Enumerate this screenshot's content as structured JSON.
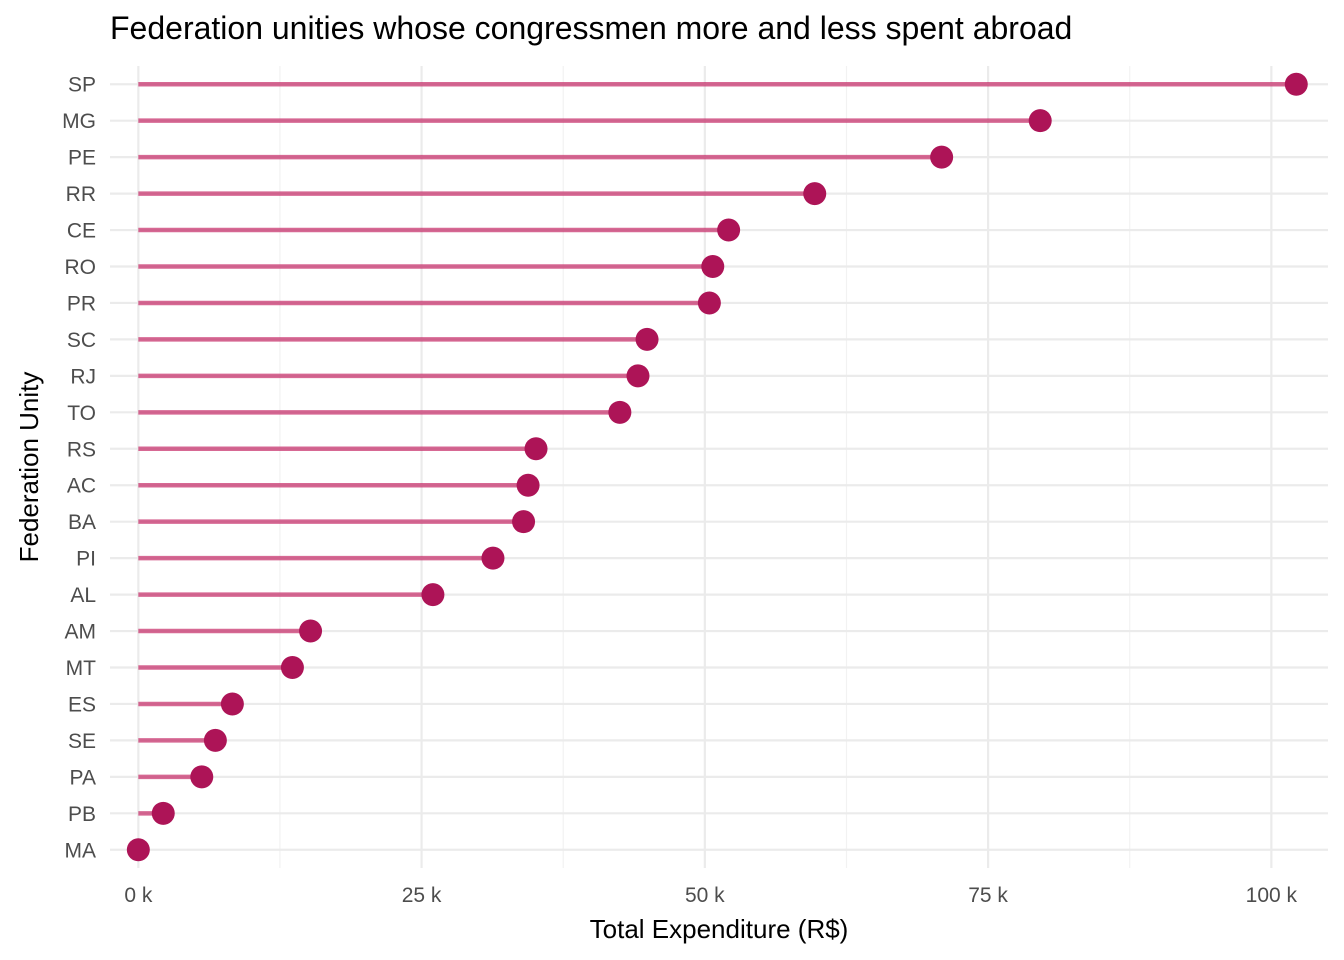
{
  "chart_data": {
    "type": "lollipop",
    "title": "Federation unities whose congressmen more and less spent abroad",
    "xlabel": "Total Expenditure (R$)",
    "ylabel": "Federation Unity",
    "xlim": [
      -2500,
      105000
    ],
    "x_ticks": [
      0,
      25000,
      50000,
      75000,
      100000
    ],
    "x_tick_labels": [
      "0 k",
      "25 k",
      "50 k",
      "75 k",
      "100 k"
    ],
    "grid": true,
    "colors": {
      "stem": "#c2185b",
      "dot": "#ad1457",
      "grid": "#ebebeb"
    },
    "categories": [
      "SP",
      "MG",
      "PE",
      "RR",
      "CE",
      "RO",
      "PR",
      "SC",
      "RJ",
      "TO",
      "RS",
      "AC",
      "BA",
      "PI",
      "AL",
      "AM",
      "MT",
      "ES",
      "SE",
      "PA",
      "PB",
      "MA"
    ],
    "values": [
      102200,
      79600,
      70900,
      59700,
      52100,
      50700,
      50400,
      44900,
      44100,
      42500,
      35100,
      34400,
      34000,
      31300,
      26000,
      15200,
      13600,
      8300,
      6800,
      5600,
      2200,
      0
    ]
  }
}
